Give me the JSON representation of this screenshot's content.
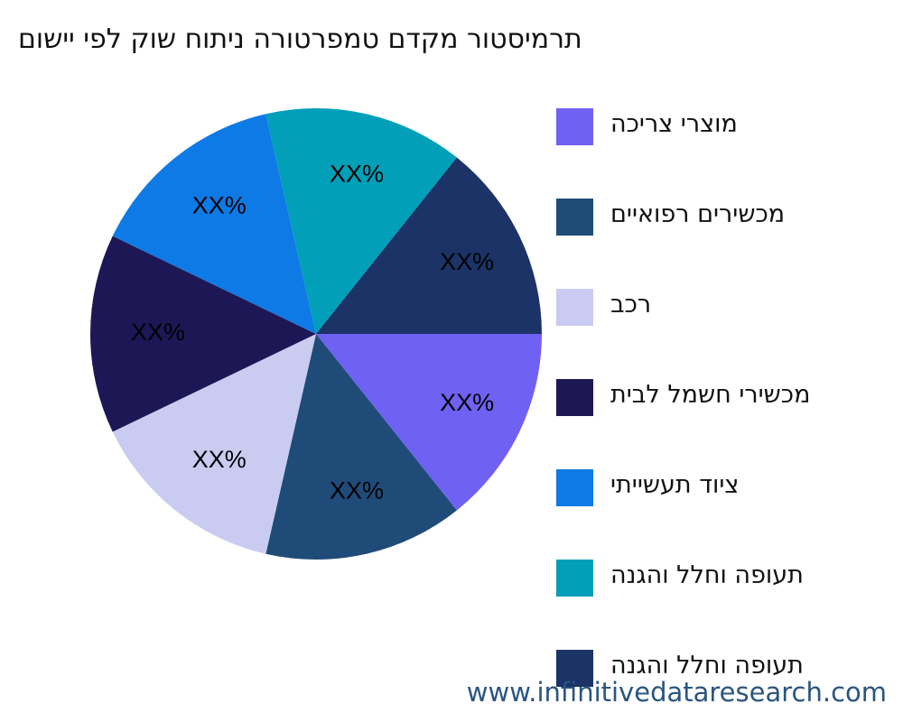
{
  "chart_data": {
    "type": "pie",
    "title": "םושיי יפל קוש חותינ הרוטרפמט םדקמ רוטסימרת",
    "categories": [
      "הכירצ ירצומ",
      "םייאופר םירישכמ",
      "בכר",
      "תיבל למשח ירישכמ",
      "יתיישעת דויצ",
      "הנגהו ללחו הפועת",
      "הנגהו ללחו הפועת"
    ],
    "values": [
      14.29,
      14.29,
      14.29,
      14.29,
      14.29,
      14.29,
      14.29
    ],
    "data_labels": [
      "XX%",
      "XX%",
      "XX%",
      "XX%",
      "XX%",
      "XX%",
      "XX%"
    ],
    "colors": [
      "#6f61f2",
      "#1f4b79",
      "#c9cbf1",
      "#1e1756",
      "#0e7ae6",
      "#019fb8",
      "#1b3366"
    ],
    "start_angle": "3 o'clock",
    "direction": "clockwise",
    "legend_position": "right"
  },
  "watermark": "www.infinitivedataresearch.com"
}
